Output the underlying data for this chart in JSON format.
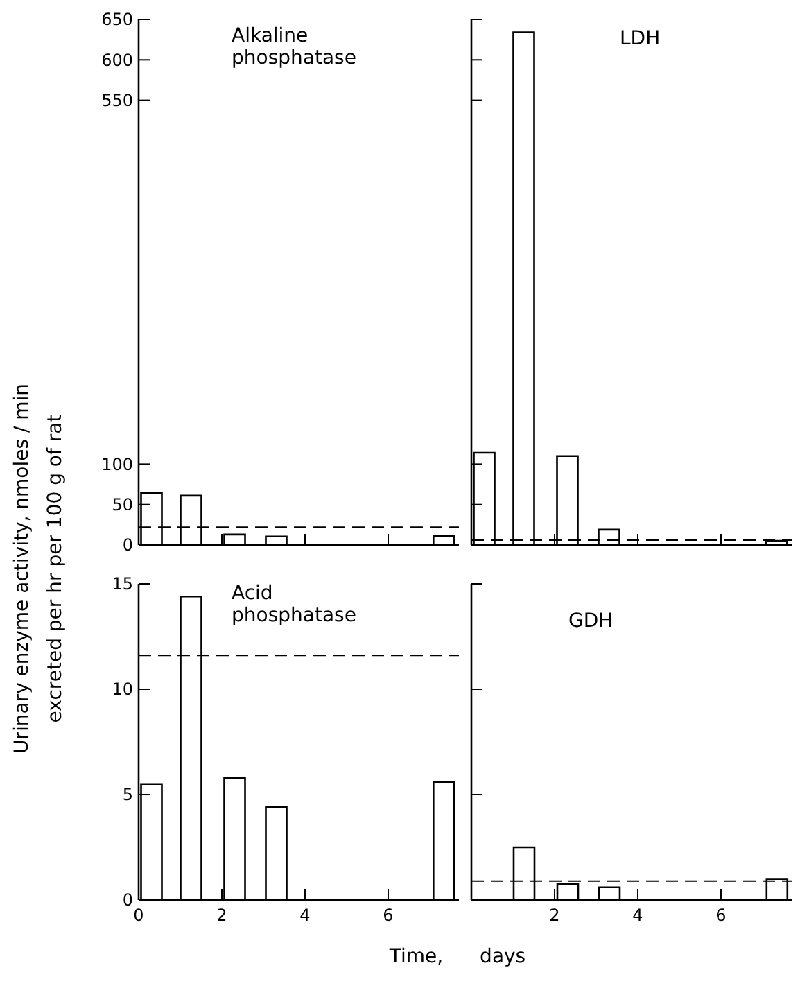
{
  "chart_data": [
    {
      "type": "bar",
      "title": "Alkaline phosphatase",
      "ylabel": "Urinary enzyme activity, nmoles / min\nexcreted per hr per 100 g of rat",
      "x": [
        0.3,
        1.25,
        2.3,
        3.3,
        7.33
      ],
      "values": [
        64,
        61,
        13,
        10.5,
        11
      ],
      "color": "#ffffff",
      "xlim": [
        0,
        7.7
      ],
      "xticks": [
        {
          "value": 2,
          "label": null
        },
        {
          "value": 4,
          "label": null
        },
        {
          "value": 6,
          "label": null
        }
      ],
      "ylim": [
        0,
        650
      ],
      "yticks": [
        0,
        50,
        100,
        550,
        600,
        650
      ],
      "tick_labels": "y",
      "ref_lines": [
        {
          "axis": "y",
          "value": 22,
          "line_style": "dashed"
        }
      ]
    },
    {
      "type": "bar",
      "title": "LDH",
      "x": [
        0.3,
        1.25,
        2.3,
        3.3,
        7.33
      ],
      "values": [
        114,
        634,
        110,
        19,
        5
      ],
      "color": "#ffffff",
      "xlim": [
        0,
        7.7
      ],
      "xticks": [
        {
          "value": 2,
          "label": null
        },
        {
          "value": 4,
          "label": null
        },
        {
          "value": 6,
          "label": null
        }
      ],
      "ylim": [
        0,
        650
      ],
      "yticks": [
        {
          "value": 0,
          "label": null
        },
        {
          "value": 50,
          "label": null
        },
        {
          "value": 100,
          "label": null
        },
        {
          "value": 550,
          "label": null
        },
        {
          "value": 600,
          "label": null
        },
        {
          "value": 650,
          "label": null
        }
      ],
      "tick_labels": false,
      "ref_lines": [
        {
          "axis": "y",
          "value": 6,
          "line_style": "dashed"
        }
      ]
    },
    {
      "type": "bar",
      "title": "Acid phosphatase",
      "xlabel": "Time, days",
      "x": [
        0.3,
        1.25,
        2.3,
        3.3,
        7.33
      ],
      "values": [
        5.5,
        14.4,
        5.8,
        4.4,
        5.6
      ],
      "color": "#ffffff",
      "xlim": [
        0,
        7.7
      ],
      "xticks": [
        0,
        2,
        4,
        6
      ],
      "ylim": [
        0,
        15
      ],
      "yticks": [
        0,
        5,
        10,
        15
      ],
      "ref_lines": [
        {
          "axis": "y",
          "value": 11.6,
          "line_style": "dashed"
        }
      ]
    },
    {
      "type": "bar",
      "title": "GDH",
      "x": [
        1.25,
        2.3,
        3.3,
        7.33
      ],
      "values": [
        2.5,
        0.75,
        0.6,
        1.0
      ],
      "color": "#ffffff",
      "xlim": [
        0,
        7.7
      ],
      "xticks": [
        2,
        4,
        6
      ],
      "ylim": [
        0,
        15
      ],
      "yticks": [
        {
          "value": 0,
          "label": null
        },
        {
          "value": 5,
          "label": null
        },
        {
          "value": 10,
          "label": null
        },
        {
          "value": 15,
          "label": null
        }
      ],
      "tick_labels": "x",
      "ref_lines": [
        {
          "axis": "y",
          "value": 0.9,
          "line_style": "dashed"
        }
      ]
    }
  ]
}
